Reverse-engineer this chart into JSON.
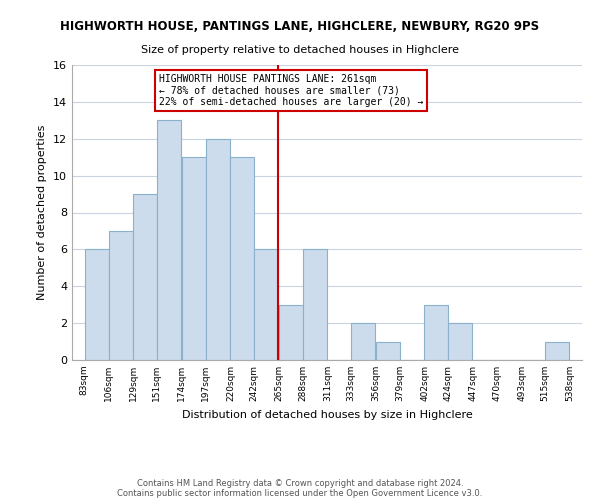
{
  "title": "HIGHWORTH HOUSE, PANTINGS LANE, HIGHCLERE, NEWBURY, RG20 9PS",
  "subtitle": "Size of property relative to detached houses in Highclere",
  "xlabel": "Distribution of detached houses by size in Highclere",
  "ylabel": "Number of detached properties",
  "bar_color": "#ccdcec",
  "bar_edge_color": "#8ab0cc",
  "grid_color": "#c8d4e0",
  "vline_x": 265,
  "vline_color": "#cc0000",
  "bins": [
    83,
    106,
    129,
    151,
    174,
    197,
    220,
    242,
    265,
    288,
    311,
    333,
    356,
    379,
    402,
    424,
    447,
    470,
    493,
    515,
    538
  ],
  "counts": [
    6,
    7,
    9,
    13,
    11,
    12,
    11,
    6,
    3,
    6,
    0,
    2,
    1,
    0,
    3,
    2,
    0,
    0,
    0,
    1
  ],
  "ylim": [
    0,
    16
  ],
  "yticks": [
    0,
    2,
    4,
    6,
    8,
    10,
    12,
    14,
    16
  ],
  "annotation_title": "HIGHWORTH HOUSE PANTINGS LANE: 261sqm",
  "annotation_line1": "← 78% of detached houses are smaller (73)",
  "annotation_line2": "22% of semi-detached houses are larger (20) →",
  "annotation_box_color": "#ffffff",
  "annotation_border_color": "#cc0000",
  "footer1": "Contains HM Land Registry data © Crown copyright and database right 2024.",
  "footer2": "Contains public sector information licensed under the Open Government Licence v3.0.",
  "background_color": "#ffffff"
}
